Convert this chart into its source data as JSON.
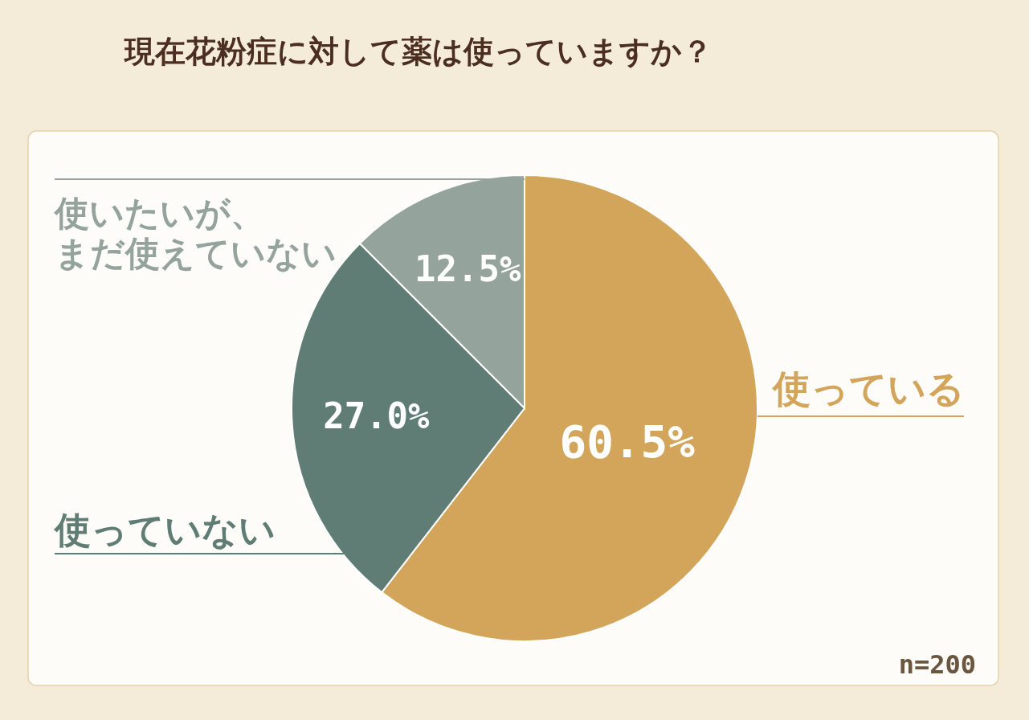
{
  "chart_data": {
    "type": "pie",
    "title": "現在花粉症に対して薬は使っていますか？",
    "categories": [
      "使っている",
      "使っていない",
      "使いたいが、まだ使えていない"
    ],
    "values": [
      60.5,
      27.0,
      12.5
    ],
    "colors": [
      "#d3a55a",
      "#5f7d74",
      "#94a39c"
    ],
    "value_labels": [
      "60.5%",
      "27.0%",
      "12.5%"
    ],
    "annotations": [
      "n=200"
    ]
  }
}
